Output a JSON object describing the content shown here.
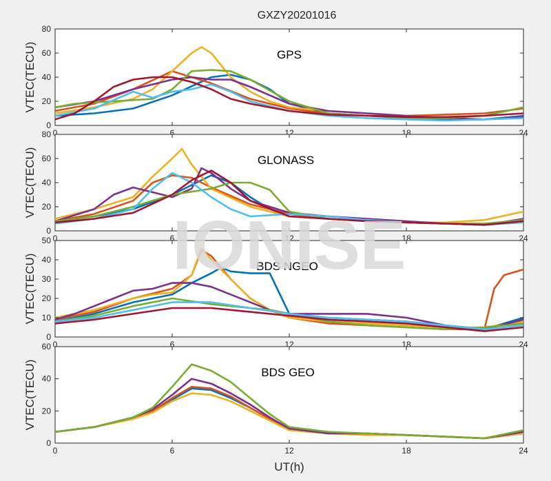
{
  "figure": {
    "title": "GXZY20201016",
    "xlabel": "UT(h)",
    "watermark": "IONISE",
    "colors": [
      "#0072BD",
      "#D95319",
      "#EDB120",
      "#7E2F8E",
      "#77AC30",
      "#4DBEEE",
      "#A2142F"
    ]
  },
  "chart_data": [
    {
      "type": "line",
      "title": "GPS",
      "ylabel": "VTEC(TECU)",
      "xlim": [
        0,
        24
      ],
      "ylim": [
        0,
        80
      ],
      "xticks": [
        0,
        6,
        12,
        18,
        24
      ],
      "yticks": [
        0,
        20,
        40,
        60,
        80
      ],
      "series": [
        {
          "color": "#0072BD",
          "x": [
            0,
            2,
            4,
            6,
            8,
            9,
            10,
            11,
            12,
            14,
            16,
            18,
            20,
            22,
            24
          ],
          "y": [
            8,
            10,
            14,
            25,
            40,
            42,
            38,
            30,
            18,
            10,
            8,
            6,
            5,
            5,
            8
          ]
        },
        {
          "color": "#D95319",
          "x": [
            0,
            2,
            4,
            6,
            7,
            8,
            10,
            12,
            14,
            16,
            18,
            20,
            22,
            24
          ],
          "y": [
            12,
            18,
            30,
            45,
            40,
            35,
            22,
            14,
            10,
            8,
            8,
            9,
            10,
            14
          ]
        },
        {
          "color": "#EDB120",
          "x": [
            0,
            2,
            4,
            5,
            6,
            7,
            7.5,
            8,
            9,
            10,
            11,
            12,
            14,
            16,
            18,
            20,
            22,
            24
          ],
          "y": [
            10,
            15,
            22,
            30,
            45,
            60,
            65,
            60,
            40,
            28,
            20,
            15,
            12,
            10,
            8,
            6,
            5,
            7
          ]
        },
        {
          "color": "#7E2F8E",
          "x": [
            0,
            2,
            4,
            6,
            7,
            8,
            9,
            10,
            11,
            12,
            14,
            16,
            18,
            20,
            22,
            24
          ],
          "y": [
            15,
            20,
            30,
            38,
            40,
            38,
            38,
            32,
            25,
            18,
            12,
            10,
            8,
            6,
            5,
            7
          ]
        },
        {
          "color": "#77AC30",
          "x": [
            0,
            1,
            3,
            5,
            6,
            7,
            8,
            9,
            10,
            12,
            14,
            16,
            18,
            20,
            22,
            24
          ],
          "y": [
            15,
            18,
            20,
            22,
            30,
            45,
            46,
            45,
            38,
            20,
            10,
            8,
            6,
            6,
            8,
            15
          ]
        },
        {
          "color": "#4DBEEE",
          "x": [
            0,
            2,
            4,
            5,
            6,
            7,
            8,
            9,
            10,
            12,
            14,
            16,
            18,
            20,
            22,
            24
          ],
          "y": [
            8,
            14,
            28,
            23,
            28,
            30,
            34,
            28,
            20,
            12,
            8,
            6,
            5,
            4,
            5,
            6
          ]
        },
        {
          "color": "#A2142F",
          "x": [
            0,
            1,
            2,
            3,
            4,
            5,
            6,
            7,
            8,
            9,
            10,
            12,
            14,
            16,
            18,
            20,
            22,
            24
          ],
          "y": [
            5,
            10,
            20,
            32,
            38,
            40,
            40,
            36,
            30,
            22,
            18,
            12,
            9,
            8,
            7,
            7,
            8,
            10
          ]
        }
      ]
    },
    {
      "type": "line",
      "title": "GLONASS",
      "ylabel": "VTEC(TECU)",
      "xlim": [
        0,
        24
      ],
      "ylim": [
        0,
        80
      ],
      "xticks": [
        0,
        6,
        12,
        18,
        24
      ],
      "yticks": [
        0,
        20,
        40,
        60,
        80
      ],
      "series": [
        {
          "color": "#0072BD",
          "x": [
            0,
            2,
            4,
            6,
            7,
            8,
            9,
            10,
            11,
            12,
            14,
            16,
            18,
            20,
            22,
            24
          ],
          "y": [
            8,
            12,
            18,
            30,
            38,
            46,
            40,
            28,
            18,
            12,
            10,
            8,
            7,
            6,
            5,
            8
          ]
        },
        {
          "color": "#D95319",
          "x": [
            0,
            2,
            4,
            5,
            6,
            7,
            8,
            10,
            12,
            14,
            16,
            18,
            20,
            22,
            24
          ],
          "y": [
            8,
            14,
            25,
            40,
            46,
            44,
            36,
            22,
            14,
            10,
            8,
            7,
            6,
            6,
            8
          ]
        },
        {
          "color": "#EDB120",
          "x": [
            0,
            2,
            4,
            5,
            6,
            6.5,
            7,
            8,
            10,
            12,
            14,
            16,
            18,
            20,
            22,
            24
          ],
          "y": [
            10,
            18,
            28,
            45,
            60,
            68,
            55,
            35,
            20,
            12,
            10,
            8,
            7,
            7,
            9,
            16
          ]
        },
        {
          "color": "#7E2F8E",
          "x": [
            0,
            2,
            3,
            4,
            5,
            6,
            7,
            7.5,
            8,
            9,
            10,
            12,
            14,
            16,
            18,
            20,
            22,
            24
          ],
          "y": [
            8,
            18,
            30,
            36,
            32,
            28,
            35,
            52,
            48,
            35,
            25,
            15,
            12,
            10,
            8,
            6,
            5,
            10
          ]
        },
        {
          "color": "#77AC30",
          "x": [
            0,
            2,
            4,
            6,
            8,
            9,
            10,
            11,
            12,
            14,
            16,
            18,
            20,
            22,
            24
          ],
          "y": [
            8,
            12,
            20,
            30,
            35,
            40,
            40,
            34,
            16,
            10,
            8,
            7,
            6,
            6,
            9
          ]
        },
        {
          "color": "#4DBEEE",
          "x": [
            0,
            2,
            4,
            5,
            6,
            7,
            8,
            9,
            10,
            12,
            14,
            16,
            18,
            20,
            22,
            24
          ],
          "y": [
            6,
            10,
            18,
            35,
            48,
            40,
            28,
            18,
            12,
            14,
            12,
            9,
            7,
            6,
            5,
            7
          ]
        },
        {
          "color": "#A2142F",
          "x": [
            0,
            2,
            4,
            6,
            7,
            8,
            9,
            10,
            12,
            14,
            16,
            18,
            20,
            22,
            24
          ],
          "y": [
            7,
            10,
            15,
            30,
            42,
            50,
            40,
            25,
            12,
            10,
            8,
            7,
            6,
            5,
            8
          ]
        }
      ]
    },
    {
      "type": "line",
      "title": "BDS NGEO",
      "ylabel": "VTEC(TECU)",
      "xlim": [
        0,
        24
      ],
      "ylim": [
        0,
        50
      ],
      "xticks": [
        0,
        6,
        12,
        18,
        24
      ],
      "yticks": [
        0,
        10,
        20,
        30,
        40,
        50
      ],
      "series": [
        {
          "color": "#0072BD",
          "x": [
            0,
            2,
            4,
            6,
            7,
            8,
            8.5,
            9,
            10,
            11,
            12,
            14,
            16,
            18,
            20,
            22,
            24
          ],
          "y": [
            8,
            12,
            18,
            22,
            28,
            33,
            36,
            34,
            33,
            33,
            12,
            10,
            9,
            8,
            6,
            4,
            10
          ]
        },
        {
          "color": "#D95319",
          "x": [
            0,
            2,
            4,
            6,
            7,
            7.5,
            8,
            9,
            10,
            11,
            12,
            14,
            16,
            18,
            20,
            22,
            22.5,
            23,
            24
          ],
          "y": [
            9,
            13,
            20,
            25,
            32,
            45,
            42,
            30,
            20,
            14,
            10,
            7,
            6,
            5,
            4,
            4,
            25,
            32,
            35
          ]
        },
        {
          "color": "#EDB120",
          "x": [
            0,
            2,
            4,
            5,
            6,
            7,
            7.5,
            8,
            9,
            10,
            11,
            12,
            14,
            16,
            18,
            20,
            22,
            24
          ],
          "y": [
            10,
            14,
            20,
            22,
            23,
            32,
            46,
            40,
            30,
            20,
            14,
            10,
            8,
            7,
            6,
            5,
            5,
            8
          ]
        },
        {
          "color": "#7E2F8E",
          "x": [
            0,
            1,
            2,
            3,
            4,
            5,
            6,
            7,
            8,
            9,
            10,
            11,
            12,
            14,
            16,
            18,
            20,
            22,
            24
          ],
          "y": [
            9,
            12,
            16,
            20,
            24,
            25,
            28,
            28,
            26,
            22,
            18,
            14,
            12,
            12,
            12,
            10,
            6,
            4,
            9
          ]
        },
        {
          "color": "#77AC30",
          "x": [
            0,
            2,
            4,
            6,
            8,
            10,
            11,
            12,
            14,
            16,
            18,
            20,
            22,
            24
          ],
          "y": [
            8,
            11,
            16,
            20,
            17,
            15,
            14,
            12,
            8,
            6,
            5,
            4,
            5,
            7
          ]
        },
        {
          "color": "#4DBEEE",
          "x": [
            0,
            2,
            4,
            6,
            8,
            10,
            12,
            14,
            16,
            18,
            20,
            22,
            24
          ],
          "y": [
            8,
            10,
            14,
            18,
            18,
            15,
            12,
            10,
            9,
            8,
            6,
            4,
            6
          ]
        },
        {
          "color": "#A2142F",
          "x": [
            0,
            2,
            4,
            6,
            8,
            10,
            12,
            14,
            16,
            18,
            20,
            22,
            24
          ],
          "y": [
            7,
            9,
            12,
            15,
            15,
            13,
            11,
            9,
            8,
            7,
            5,
            3,
            5
          ]
        }
      ]
    },
    {
      "type": "line",
      "title": "BDS GEO",
      "ylabel": "VTEC(TECU)",
      "xlim": [
        0,
        24
      ],
      "ylim": [
        0,
        60
      ],
      "xticks": [
        0,
        6,
        12,
        18,
        24
      ],
      "yticks": [
        0,
        20,
        40,
        60
      ],
      "series": [
        {
          "color": "#0072BD",
          "x": [
            0,
            2,
            4,
            5,
            6,
            7,
            8,
            9,
            10,
            11,
            12,
            14,
            16,
            18,
            20,
            22,
            24
          ],
          "y": [
            7,
            10,
            16,
            20,
            27,
            34,
            33,
            28,
            22,
            15,
            9,
            6,
            6,
            5,
            4,
            3,
            6
          ]
        },
        {
          "color": "#D95319",
          "x": [
            0,
            2,
            4,
            5,
            6,
            7,
            8,
            9,
            10,
            11,
            12,
            14,
            16,
            18,
            20,
            22,
            24
          ],
          "y": [
            7,
            10,
            16,
            20,
            28,
            35,
            34,
            29,
            22,
            15,
            9,
            6,
            6,
            5,
            4,
            3,
            6
          ]
        },
        {
          "color": "#EDB120",
          "x": [
            0,
            2,
            4,
            5,
            6,
            7,
            8,
            9,
            10,
            11,
            12,
            14,
            16,
            18,
            20,
            22,
            24
          ],
          "y": [
            7,
            10,
            15,
            19,
            26,
            31,
            30,
            26,
            20,
            14,
            8,
            6,
            5,
            5,
            4,
            3,
            6
          ]
        },
        {
          "color": "#7E2F8E",
          "x": [
            0,
            2,
            4,
            5,
            6,
            7,
            8,
            9,
            10,
            11,
            12,
            14,
            16,
            18,
            20,
            22,
            24
          ],
          "y": [
            7,
            10,
            16,
            21,
            30,
            40,
            37,
            31,
            24,
            16,
            9,
            6,
            6,
            5,
            4,
            3,
            7
          ]
        },
        {
          "color": "#77AC30",
          "x": [
            0,
            2,
            4,
            5,
            6,
            7,
            8,
            9,
            10,
            11,
            12,
            14,
            16,
            18,
            20,
            22,
            24
          ],
          "y": [
            7,
            10,
            16,
            22,
            35,
            49,
            45,
            38,
            28,
            18,
            10,
            7,
            6,
            5,
            4,
            3,
            8
          ]
        }
      ]
    }
  ]
}
